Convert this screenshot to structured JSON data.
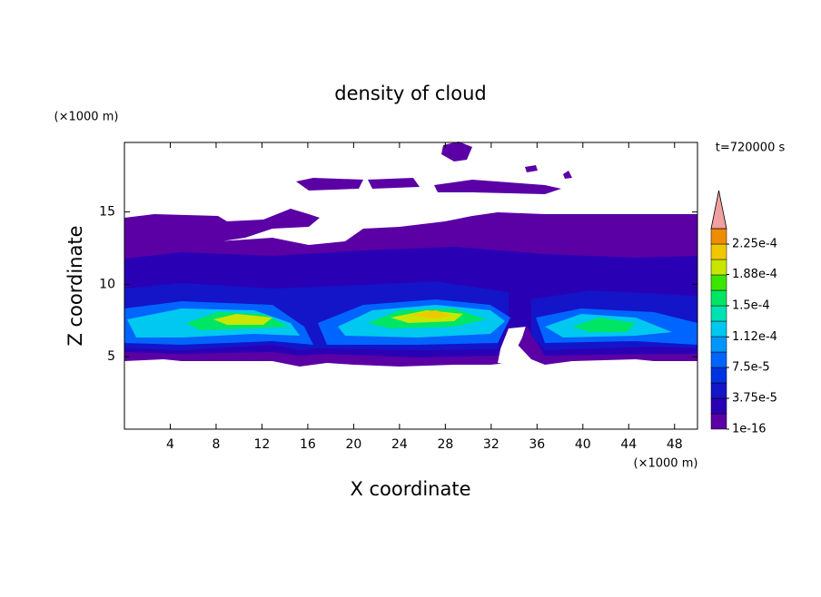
{
  "chart_data": {
    "type": "contour",
    "title": "density of cloud",
    "xlabel": "X coordinate",
    "ylabel": "Z coordinate",
    "x_unit": "(×1000 m)",
    "y_unit": "(×1000 m)",
    "time_label": "t=720000 s",
    "xlim": [
      0,
      50
    ],
    "ylim": [
      0,
      19.8
    ],
    "xticks": [
      4,
      8,
      12,
      16,
      20,
      24,
      28,
      32,
      36,
      40,
      44,
      48
    ],
    "yticks": [
      5,
      10,
      15
    ],
    "colorbar_levels": [
      {
        "value": 1e-16,
        "label": "1e-16"
      },
      {
        "value": 3.75e-05,
        "label": "3.75e-5"
      },
      {
        "value": 7.5e-05,
        "label": "7.5e-5"
      },
      {
        "value": 0.000112,
        "label": "1.12e-4"
      },
      {
        "value": 0.00015,
        "label": "1.5e-4"
      },
      {
        "value": 0.000188,
        "label": "1.88e-4"
      },
      {
        "value": 0.000225,
        "label": "2.25e-4"
      }
    ],
    "colorbar_colors": [
      "#5a00a5",
      "#2a00b4",
      "#1414c8",
      "#0032e1",
      "#0064ff",
      "#0096ff",
      "#00c8f0",
      "#00e1b4",
      "#00e664",
      "#3ce600",
      "#c8e600",
      "#f0c800",
      "#f08c00",
      "#f05000",
      "#f00000"
    ],
    "extend_color": "#f0a0a0"
  }
}
